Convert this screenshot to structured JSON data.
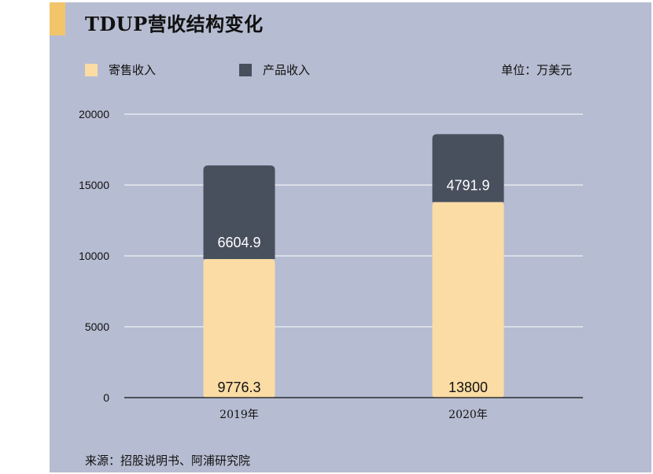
{
  "header": {
    "title": "TDUP营收结构变化"
  },
  "legend": {
    "items": [
      {
        "label": "寄售收入"
      },
      {
        "label": "产品收入"
      }
    ]
  },
  "unit_label": "单位：万美元",
  "source_label": "来源：招股说明书、阿浦研究院",
  "colors": {
    "background": "#b6bcd1",
    "accent": "#f2c56b",
    "consignment": "#fbdca5",
    "product": "#484f5d"
  },
  "chart_data": {
    "type": "bar",
    "stacked": true,
    "categories": [
      "2019年",
      "2020年"
    ],
    "series": [
      {
        "name": "寄售收入",
        "values": [
          9776.3,
          13800
        ],
        "labels": [
          "9776.3",
          "13800"
        ]
      },
      {
        "name": "产品收入",
        "values": [
          6604.9,
          4791.9
        ],
        "labels": [
          "6604.9",
          "4791.9"
        ]
      }
    ],
    "ylim": [
      0,
      20000
    ],
    "yticks": [
      "0",
      "5000",
      "10000",
      "15000",
      "20000"
    ],
    "title": "TDUP营收结构变化",
    "xlabel": "",
    "ylabel": "",
    "grid": true,
    "legend_position": "top-left"
  }
}
